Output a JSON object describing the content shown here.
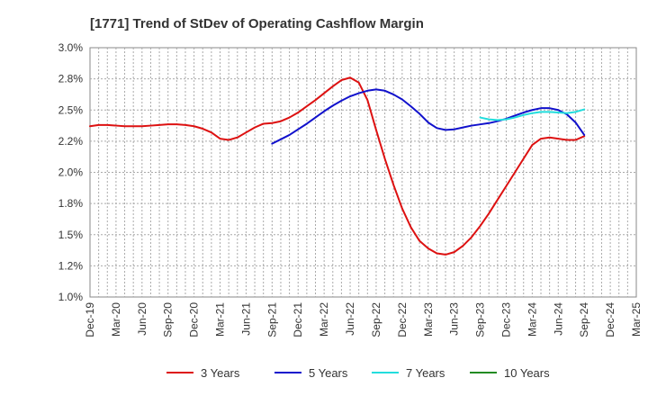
{
  "chart_data": {
    "type": "line",
    "title": "[1771]  Trend of StDev of Operating Cashflow Margin",
    "xlabel": "",
    "ylabel": "",
    "x_ticks": [
      "Dec-19",
      "Mar-20",
      "Jun-20",
      "Sep-20",
      "Dec-20",
      "Mar-21",
      "Jun-21",
      "Sep-21",
      "Dec-21",
      "Mar-22",
      "Jun-22",
      "Sep-22",
      "Dec-22",
      "Mar-23",
      "Jun-23",
      "Sep-23",
      "Dec-23",
      "Mar-24",
      "Jun-24",
      "Sep-24",
      "Dec-24",
      "Mar-25"
    ],
    "y_ticks": [
      "3.0%",
      "2.8%",
      "2.5%",
      "2.2%",
      "2.0%",
      "1.8%",
      "1.5%",
      "1.2%",
      "1.0%"
    ],
    "ylim": [
      1.0,
      3.0
    ],
    "grid": true,
    "legend_position": "bottom",
    "series": [
      {
        "name": "3 Years",
        "color": "#dd1111",
        "points": [
          [
            "Dec-19",
            2.37
          ],
          [
            "Jan-20",
            2.38
          ],
          [
            "Feb-20",
            2.38
          ],
          [
            "Mar-20",
            2.375
          ],
          [
            "Apr-20",
            2.37
          ],
          [
            "May-20",
            2.37
          ],
          [
            "Jun-20",
            2.37
          ],
          [
            "Jul-20",
            2.375
          ],
          [
            "Aug-20",
            2.38
          ],
          [
            "Sep-20",
            2.385
          ],
          [
            "Oct-20",
            2.385
          ],
          [
            "Nov-20",
            2.38
          ],
          [
            "Dec-20",
            2.37
          ],
          [
            "Jan-21",
            2.35
          ],
          [
            "Feb-21",
            2.32
          ],
          [
            "Mar-21",
            2.27
          ],
          [
            "Apr-21",
            2.26
          ],
          [
            "May-21",
            2.28
          ],
          [
            "Jun-21",
            2.32
          ],
          [
            "Jul-21",
            2.36
          ],
          [
            "Aug-21",
            2.39
          ],
          [
            "Sep-21",
            2.395
          ],
          [
            "Oct-21",
            2.41
          ],
          [
            "Nov-21",
            2.44
          ],
          [
            "Dec-21",
            2.48
          ],
          [
            "Jan-22",
            2.53
          ],
          [
            "Feb-22",
            2.58
          ],
          [
            "Mar-22",
            2.635
          ],
          [
            "Apr-22",
            2.69
          ],
          [
            "May-22",
            2.74
          ],
          [
            "Jun-22",
            2.76
          ],
          [
            "Jul-22",
            2.72
          ],
          [
            "Aug-22",
            2.58
          ],
          [
            "Sep-22",
            2.34
          ],
          [
            "Oct-22",
            2.11
          ],
          [
            "Nov-22",
            1.9
          ],
          [
            "Dec-22",
            1.71
          ],
          [
            "Jan-23",
            1.56
          ],
          [
            "Feb-23",
            1.45
          ],
          [
            "Mar-23",
            1.39
          ],
          [
            "Apr-23",
            1.35
          ],
          [
            "May-23",
            1.34
          ],
          [
            "Jun-23",
            1.36
          ],
          [
            "Jul-23",
            1.41
          ],
          [
            "Aug-23",
            1.48
          ],
          [
            "Sep-23",
            1.57
          ],
          [
            "Oct-23",
            1.67
          ],
          [
            "Nov-23",
            1.78
          ],
          [
            "Dec-23",
            1.89
          ],
          [
            "Jan-24",
            2.0
          ],
          [
            "Feb-24",
            2.11
          ],
          [
            "Mar-24",
            2.22
          ],
          [
            "Apr-24",
            2.27
          ],
          [
            "May-24",
            2.28
          ],
          [
            "Jun-24",
            2.27
          ],
          [
            "Jul-24",
            2.26
          ],
          [
            "Aug-24",
            2.26
          ],
          [
            "Sep-24",
            2.29
          ]
        ]
      },
      {
        "name": "5 Years",
        "color": "#1111cc",
        "points": [
          [
            "Sep-21",
            2.23
          ],
          [
            "Oct-21",
            2.265
          ],
          [
            "Nov-21",
            2.3
          ],
          [
            "Dec-21",
            2.345
          ],
          [
            "Jan-22",
            2.39
          ],
          [
            "Feb-22",
            2.44
          ],
          [
            "Mar-22",
            2.49
          ],
          [
            "Apr-22",
            2.535
          ],
          [
            "May-22",
            2.575
          ],
          [
            "Jun-22",
            2.61
          ],
          [
            "Jul-22",
            2.635
          ],
          [
            "Aug-22",
            2.655
          ],
          [
            "Sep-22",
            2.665
          ],
          [
            "Oct-22",
            2.655
          ],
          [
            "Nov-22",
            2.625
          ],
          [
            "Dec-22",
            2.585
          ],
          [
            "Jan-23",
            2.53
          ],
          [
            "Feb-23",
            2.47
          ],
          [
            "Mar-23",
            2.4
          ],
          [
            "Apr-23",
            2.355
          ],
          [
            "May-23",
            2.34
          ],
          [
            "Jun-23",
            2.345
          ],
          [
            "Jul-23",
            2.36
          ],
          [
            "Aug-23",
            2.375
          ],
          [
            "Sep-23",
            2.385
          ],
          [
            "Oct-23",
            2.395
          ],
          [
            "Nov-23",
            2.41
          ],
          [
            "Dec-23",
            2.43
          ],
          [
            "Jan-24",
            2.455
          ],
          [
            "Feb-24",
            2.48
          ],
          [
            "Mar-24",
            2.5
          ],
          [
            "Apr-24",
            2.515
          ],
          [
            "May-24",
            2.515
          ],
          [
            "Jun-24",
            2.5
          ],
          [
            "Jul-24",
            2.465
          ],
          [
            "Aug-24",
            2.4
          ],
          [
            "Sep-24",
            2.3
          ]
        ]
      },
      {
        "name": "7 Years",
        "color": "#22dddd",
        "points": [
          [
            "Sep-23",
            2.44
          ],
          [
            "Oct-23",
            2.425
          ],
          [
            "Nov-23",
            2.42
          ],
          [
            "Dec-23",
            2.425
          ],
          [
            "Jan-24",
            2.44
          ],
          [
            "Feb-24",
            2.46
          ],
          [
            "Mar-24",
            2.475
          ],
          [
            "Apr-24",
            2.485
          ],
          [
            "May-24",
            2.485
          ],
          [
            "Jun-24",
            2.48
          ],
          [
            "Jul-24",
            2.475
          ],
          [
            "Aug-24",
            2.485
          ],
          [
            "Sep-24",
            2.505
          ]
        ]
      },
      {
        "name": "10 Years",
        "color": "#228b22",
        "points": []
      }
    ]
  }
}
